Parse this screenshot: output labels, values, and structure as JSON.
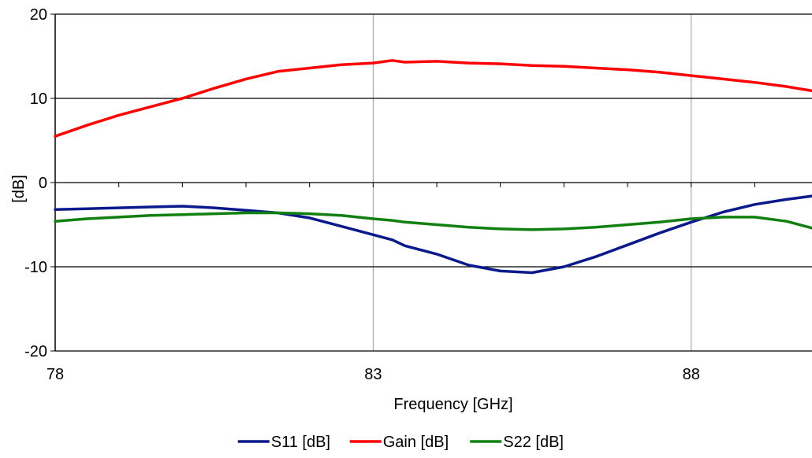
{
  "chart_data": {
    "type": "line",
    "xlabel": "Frequency  [GHz]",
    "ylabel": "[dB]",
    "xlim": [
      78,
      89.9
    ],
    "ylim": [
      -20,
      20
    ],
    "x_ticks": [
      78,
      83,
      88
    ],
    "y_ticks": [
      -20,
      -10,
      0,
      10,
      20
    ],
    "grid": "major",
    "legend_position": "bottom",
    "x": [
      78,
      78.5,
      79,
      79.5,
      80,
      80.5,
      81,
      81.5,
      82,
      82.5,
      83,
      83.3,
      83.5,
      84,
      84.5,
      85,
      85.5,
      86,
      86.5,
      87,
      87.5,
      88,
      88.5,
      89,
      89.5,
      89.9
    ],
    "series": [
      {
        "name": "S11 [dB]",
        "color": "#0a1a8c",
        "values": [
          -3.2,
          -3.1,
          -3.0,
          -2.9,
          -2.8,
          -3.0,
          -3.3,
          -3.6,
          -4.2,
          -5.2,
          -6.2,
          -6.8,
          -7.5,
          -8.5,
          -9.8,
          -10.5,
          -10.7,
          -10.0,
          -8.8,
          -7.4,
          -6.0,
          -4.7,
          -3.5,
          -2.6,
          -2.0,
          -1.6
        ]
      },
      {
        "name": "Gain [dB]",
        "color": "#ff0000",
        "values": [
          5.5,
          6.8,
          8.0,
          9.0,
          10.0,
          11.2,
          12.3,
          13.2,
          13.6,
          14.0,
          14.2,
          14.5,
          14.3,
          14.4,
          14.2,
          14.1,
          13.9,
          13.8,
          13.6,
          13.4,
          13.1,
          12.7,
          12.3,
          11.9,
          11.4,
          10.9
        ]
      },
      {
        "name": "S22 [dB]",
        "color": "#118011",
        "values": [
          -4.6,
          -4.3,
          -4.1,
          -3.9,
          -3.8,
          -3.7,
          -3.6,
          -3.6,
          -3.7,
          -3.9,
          -4.3,
          -4.5,
          -4.7,
          -5.0,
          -5.3,
          -5.5,
          -5.6,
          -5.5,
          -5.3,
          -5.0,
          -4.7,
          -4.3,
          -4.1,
          -4.1,
          -4.6,
          -5.4
        ]
      }
    ]
  }
}
